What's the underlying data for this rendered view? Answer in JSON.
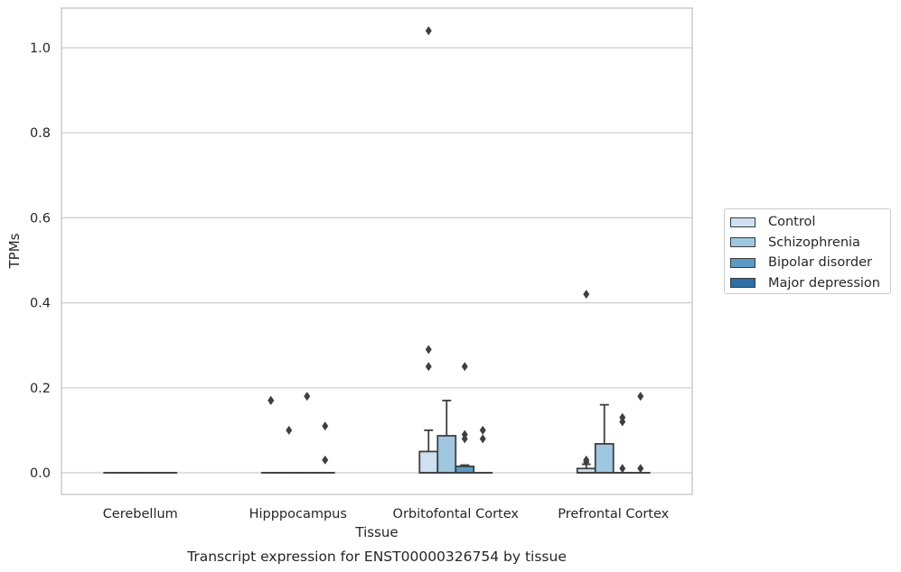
{
  "chart_data": {
    "type": "box",
    "title": "",
    "caption": "Transcript expression for ENST00000326754 by tissue",
    "xlabel": "Tissue",
    "ylabel": "TPMs",
    "ylim": [
      -0.05,
      1.09
    ],
    "yticks": [
      0.0,
      0.2,
      0.4,
      0.6,
      0.8,
      1.0
    ],
    "ytick_labels": [
      "0.0",
      "0.2",
      "0.4",
      "0.6",
      "0.8",
      "1.0"
    ],
    "categories": [
      "Cerebellum",
      "Hipppocampus",
      "Orbitofontal Cortex",
      "Prefrontal Cortex"
    ],
    "grid": true,
    "legend_position": "right",
    "series": [
      {
        "name": "Control",
        "color": "#cfe0f0",
        "boxes": [
          {
            "category": "Cerebellum",
            "q1": 0,
            "median": 0,
            "q3": 0,
            "whisker_low": 0,
            "whisker_high": 0,
            "outliers": []
          },
          {
            "category": "Hipppocampus",
            "q1": 0,
            "median": 0,
            "q3": 0,
            "whisker_low": 0,
            "whisker_high": 0,
            "outliers": [
              0.17,
              0.17
            ]
          },
          {
            "category": "Orbitofontal Cortex",
            "q1": 0,
            "median": 0,
            "q3": 0.05,
            "whisker_low": 0,
            "whisker_high": 0.1,
            "outliers": [
              1.04,
              0.29,
              0.25
            ]
          },
          {
            "category": "Prefrontal Cortex",
            "q1": 0,
            "median": 0,
            "q3": 0.01,
            "whisker_low": 0,
            "whisker_high": 0.02,
            "outliers": [
              0.42,
              0.03,
              0.025
            ]
          }
        ]
      },
      {
        "name": "Schizophrenia",
        "color": "#9fc7e0",
        "boxes": [
          {
            "category": "Cerebellum",
            "q1": 0,
            "median": 0,
            "q3": 0,
            "whisker_low": 0,
            "whisker_high": 0,
            "outliers": []
          },
          {
            "category": "Hipppocampus",
            "q1": 0,
            "median": 0,
            "q3": 0,
            "whisker_low": 0,
            "whisker_high": 0,
            "outliers": [
              0.1
            ]
          },
          {
            "category": "Orbitofontal Cortex",
            "q1": 0,
            "median": 0,
            "q3": 0.087,
            "whisker_low": 0,
            "whisker_high": 0.17,
            "outliers": []
          },
          {
            "category": "Prefrontal Cortex",
            "q1": 0,
            "median": 0,
            "q3": 0.068,
            "whisker_low": 0,
            "whisker_high": 0.16,
            "outliers": []
          }
        ]
      },
      {
        "name": "Bipolar disorder",
        "color": "#5a9ac6",
        "boxes": [
          {
            "category": "Cerebellum",
            "q1": 0,
            "median": 0,
            "q3": 0,
            "whisker_low": 0,
            "whisker_high": 0,
            "outliers": []
          },
          {
            "category": "Hipppocampus",
            "q1": 0,
            "median": 0,
            "q3": 0,
            "whisker_low": 0,
            "whisker_high": 0,
            "outliers": [
              0.18
            ]
          },
          {
            "category": "Orbitofontal Cortex",
            "q1": 0,
            "median": 0,
            "q3": 0.015,
            "whisker_low": 0,
            "whisker_high": 0.018,
            "outliers": [
              0.25,
              0.09,
              0.08
            ]
          },
          {
            "category": "Prefrontal Cortex",
            "q1": 0,
            "median": 0,
            "q3": 0,
            "whisker_low": 0,
            "whisker_high": 0,
            "outliers": [
              0.13,
              0.12,
              0.01
            ]
          }
        ]
      },
      {
        "name": "Major depression",
        "color": "#2c6ea5",
        "boxes": [
          {
            "category": "Cerebellum",
            "q1": 0,
            "median": 0,
            "q3": 0,
            "whisker_low": 0,
            "whisker_high": 0,
            "outliers": []
          },
          {
            "category": "Hipppocampus",
            "q1": 0,
            "median": 0,
            "q3": 0,
            "whisker_low": 0,
            "whisker_high": 0,
            "outliers": [
              0.11,
              0.03
            ]
          },
          {
            "category": "Orbitofontal Cortex",
            "q1": 0,
            "median": 0,
            "q3": 0,
            "whisker_low": 0,
            "whisker_high": 0,
            "outliers": [
              0.1,
              0.08
            ]
          },
          {
            "category": "Prefrontal Cortex",
            "q1": 0,
            "median": 0,
            "q3": 0,
            "whisker_low": 0,
            "whisker_high": 0,
            "outliers": [
              0.18,
              0.01
            ]
          }
        ]
      }
    ]
  }
}
